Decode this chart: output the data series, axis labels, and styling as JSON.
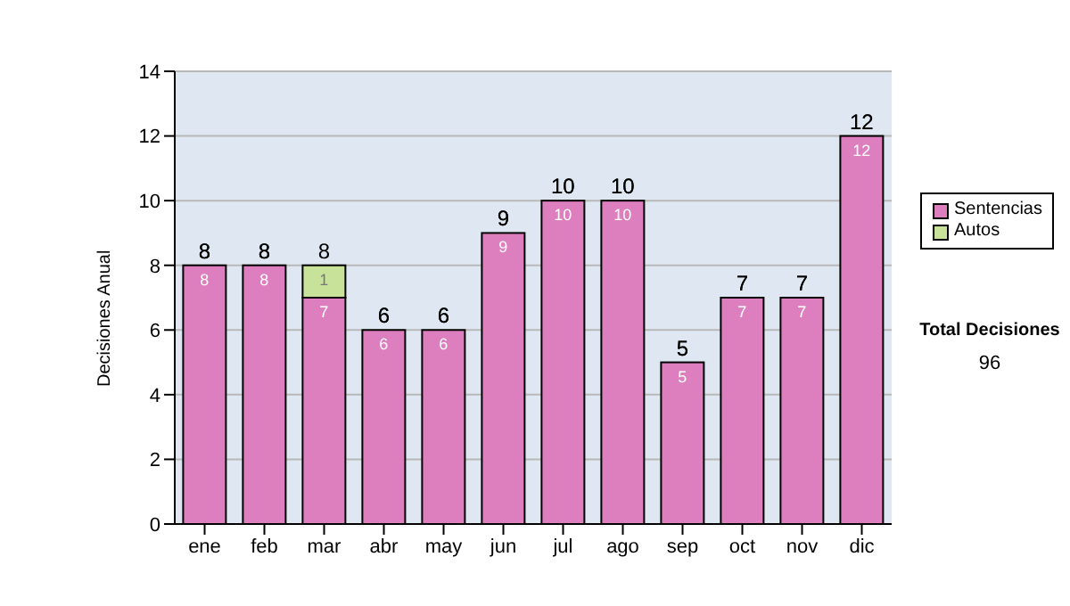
{
  "chart_data": {
    "type": "bar",
    "stacked": true,
    "ylabel": "Decisiones Anual",
    "categories": [
      "ene",
      "feb",
      "mar",
      "abr",
      "may",
      "jun",
      "jul",
      "ago",
      "sep",
      "oct",
      "nov",
      "dic"
    ],
    "series": [
      {
        "name": "Sentencias",
        "color": "#dd7fbf",
        "values": [
          8,
          8,
          7,
          6,
          6,
          9,
          10,
          10,
          5,
          7,
          7,
          12
        ]
      },
      {
        "name": "Autos",
        "color": "#c8e29a",
        "values": [
          null,
          null,
          1,
          null,
          null,
          null,
          null,
          null,
          null,
          null,
          null,
          null
        ]
      }
    ],
    "ylim": [
      0,
      14
    ],
    "yticks": [
      0,
      2,
      4,
      6,
      8,
      10,
      12,
      14
    ],
    "grid": "y",
    "legend": "right",
    "data_labels": true,
    "totals": [
      "8",
      "8",
      "8",
      "6",
      "6",
      "9",
      "10",
      "10",
      "5",
      "7",
      "7",
      "12"
    ],
    "annotations": [
      "Total Decisiones",
      "96"
    ]
  }
}
